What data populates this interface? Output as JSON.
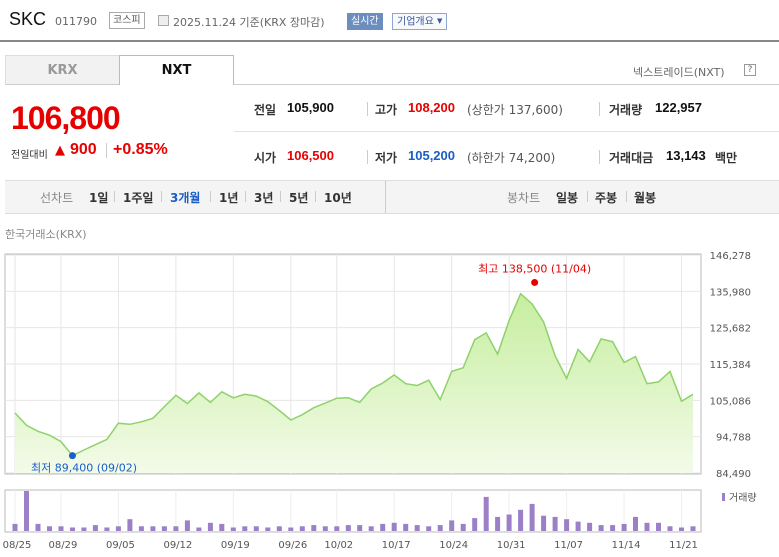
{
  "header": {
    "company_name": "SKC",
    "stock_code": "011790",
    "market": "코스피",
    "date_info": "2025.11.24  기준(KRX 장마감)",
    "realtime_label": "실시간",
    "company_info_label": "기업개요"
  },
  "tabs": [
    {
      "label": "KRX",
      "active": false
    },
    {
      "label": "NXT",
      "active": true
    }
  ],
  "nxt_link": "넥스트레이드(NXT)",
  "help_icon": "?",
  "price": {
    "current": "106,800",
    "change_label": "전일대비",
    "change_arrow": "▲",
    "change_value": "900",
    "change_rate": "+0.85%"
  },
  "stats": {
    "prev_close": {
      "label": "전일",
      "value": "105,900"
    },
    "high": {
      "label": "고가",
      "value": "108,200",
      "sub": "(상한가 137,600)"
    },
    "volume": {
      "label": "거래량",
      "value": "122,957"
    },
    "open": {
      "label": "시가",
      "value": "106,500"
    },
    "low": {
      "label": "저가",
      "value": "105,200",
      "sub": "(하한가 74,200)"
    },
    "amount": {
      "label": "거래대금",
      "value": "13,143",
      "unit": "백만"
    }
  },
  "periods": {
    "line_label": "선차트",
    "line_items": [
      "1일",
      "1주일",
      "3개월",
      "1년",
      "3년",
      "5년",
      "10년"
    ],
    "active_index": 2,
    "candle_label": "봉차트",
    "candle_items": [
      "일봉",
      "주봉",
      "월봉"
    ]
  },
  "exchange_label": "한국거래소(KRX)",
  "chart_data": {
    "type": "area",
    "y_ticks": [
      "146,278",
      "135,980",
      "125,682",
      "115,384",
      "105,086",
      "94,788",
      "84,490"
    ],
    "y_tick_values": [
      146278,
      135980,
      125682,
      115384,
      105086,
      94788,
      84490
    ],
    "ylim": [
      84490,
      146278
    ],
    "x_tick_labels": [
      "08/25",
      "08/29",
      "09/05",
      "09/12",
      "09/19",
      "09/26",
      "10/02",
      "10/17",
      "10/24",
      "10/31",
      "11/07",
      "11/14",
      "11/21"
    ],
    "points": [
      {
        "x": "08/25",
        "y": 101500
      },
      {
        "x": "08/26",
        "y": 98000
      },
      {
        "x": "08/27",
        "y": 96300
      },
      {
        "x": "08/28",
        "y": 95200
      },
      {
        "x": "08/29",
        "y": 93400
      },
      {
        "x": "09/01",
        "y": 89400
      },
      {
        "x": "09/02",
        "y": 91000
      },
      {
        "x": "09/03",
        "y": 92500
      },
      {
        "x": "09/04",
        "y": 94000
      },
      {
        "x": "09/05",
        "y": 98600
      },
      {
        "x": "09/08",
        "y": 98300
      },
      {
        "x": "09/09",
        "y": 99000
      },
      {
        "x": "09/10",
        "y": 100000
      },
      {
        "x": "09/11",
        "y": 103300
      },
      {
        "x": "09/12",
        "y": 106500
      },
      {
        "x": "09/15",
        "y": 104200
      },
      {
        "x": "09/16",
        "y": 107200
      },
      {
        "x": "09/17",
        "y": 104500
      },
      {
        "x": "09/18",
        "y": 107500
      },
      {
        "x": "09/19",
        "y": 105800
      },
      {
        "x": "09/22",
        "y": 106800
      },
      {
        "x": "09/23",
        "y": 106300
      },
      {
        "x": "09/24",
        "y": 104700
      },
      {
        "x": "09/25",
        "y": 102200
      },
      {
        "x": "09/26",
        "y": 99500
      },
      {
        "x": "09/29",
        "y": 101000
      },
      {
        "x": "09/30",
        "y": 103000
      },
      {
        "x": "10/01",
        "y": 104300
      },
      {
        "x": "10/02",
        "y": 105700
      },
      {
        "x": "10/13",
        "y": 105800
      },
      {
        "x": "10/14",
        "y": 104500
      },
      {
        "x": "10/15",
        "y": 108300
      },
      {
        "x": "10/16",
        "y": 110000
      },
      {
        "x": "10/17",
        "y": 112300
      },
      {
        "x": "10/20",
        "y": 109800
      },
      {
        "x": "10/21",
        "y": 109300
      },
      {
        "x": "10/22",
        "y": 110800
      },
      {
        "x": "10/23",
        "y": 105300
      },
      {
        "x": "10/24",
        "y": 113300
      },
      {
        "x": "10/27",
        "y": 114300
      },
      {
        "x": "10/28",
        "y": 122300
      },
      {
        "x": "10/29",
        "y": 124200
      },
      {
        "x": "10/30",
        "y": 118200
      },
      {
        "x": "10/31",
        "y": 127700
      },
      {
        "x": "11/03",
        "y": 135300
      },
      {
        "x": "11/04",
        "y": 132400
      },
      {
        "x": "11/05",
        "y": 127300
      },
      {
        "x": "11/06",
        "y": 117700
      },
      {
        "x": "11/07",
        "y": 111300
      },
      {
        "x": "11/10",
        "y": 119500
      },
      {
        "x": "11/11",
        "y": 116000
      },
      {
        "x": "11/12",
        "y": 122500
      },
      {
        "x": "11/13",
        "y": 121700
      },
      {
        "x": "11/14",
        "y": 115800
      },
      {
        "x": "11/17",
        "y": 117500
      },
      {
        "x": "11/18",
        "y": 109800
      },
      {
        "x": "11/19",
        "y": 110300
      },
      {
        "x": "11/20",
        "y": 113300
      },
      {
        "x": "11/21",
        "y": 104800
      },
      {
        "x": "11/24",
        "y": 106800
      }
    ],
    "volume_label": "거래량",
    "volumes": [
      6,
      34,
      6,
      4,
      4,
      3,
      3,
      5,
      3,
      4,
      10,
      4,
      4,
      4,
      4,
      9,
      3,
      7,
      6,
      3,
      4,
      4,
      3,
      4,
      3,
      4,
      5,
      4,
      4,
      5,
      5,
      4,
      6,
      7,
      6,
      5,
      4,
      5,
      9,
      6,
      11,
      29,
      12,
      14,
      18,
      23,
      13,
      12,
      10,
      8,
      7,
      5,
      5,
      6,
      12,
      7,
      7,
      4,
      3,
      4
    ],
    "high_annotation": "최고 138,500 (11/04)",
    "low_annotation": "최저 89,400 (09/02)",
    "high_point_value": 138500,
    "low_point_value": 89400,
    "colors": {
      "line": "#8fd16b",
      "fill_top": "#c6ee9f",
      "fill_bottom": "#f3fbe9",
      "volume_bar": "#9b7fc7",
      "high": "#e60000",
      "low": "#1a5fc8"
    }
  }
}
